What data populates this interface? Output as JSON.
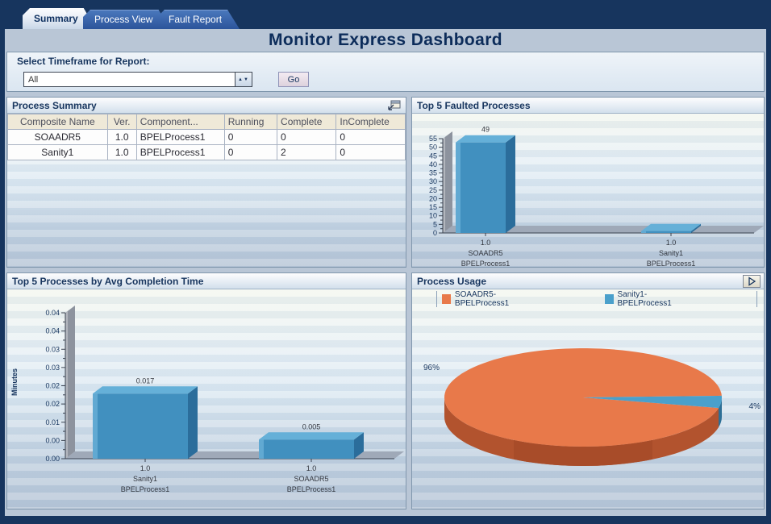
{
  "tabs": [
    {
      "label": "Summary",
      "active": true
    },
    {
      "label": "Process View",
      "active": false
    },
    {
      "label": "Fault Report",
      "active": false
    }
  ],
  "title": "Monitor Express Dashboard",
  "timeframe": {
    "heading": "Select Timeframe for Report:",
    "selected_option": "All",
    "go_label": "Go"
  },
  "process_summary": {
    "title": "Process Summary",
    "columns": [
      "Composite Name",
      "Ver.",
      "Component...",
      "Running",
      "Complete",
      "InComplete"
    ],
    "rows": [
      [
        "SOAADR5",
        "1.0",
        "BPELProcess1",
        "0",
        "0",
        "0"
      ],
      [
        "Sanity1",
        "1.0",
        "BPELProcess1",
        "0",
        "2",
        "0"
      ]
    ]
  },
  "chart_data": [
    {
      "type": "bar",
      "title": "Top 5 Faulted Processes",
      "ylim": [
        0,
        55
      ],
      "y_tick_step": 5,
      "y_tick_labels_top_to_bottom": [
        "55",
        "50",
        "45",
        "40",
        "35",
        "30",
        "25",
        "20",
        "15",
        "10",
        "5",
        "0"
      ],
      "categories": [
        [
          "1.0",
          "SOAADR5",
          "BPELProcess1"
        ],
        [
          "1.0",
          "Sanity1",
          "BPELProcess1"
        ]
      ],
      "values": [
        49,
        1
      ],
      "data_labels": [
        "49",
        ""
      ],
      "bar_front_color": "#4190bf",
      "bar_top_color": "#65b0d8",
      "bar_side_color": "#2b6d9b"
    },
    {
      "type": "bar",
      "title": "Top 5 Processes by Avg Completion Time",
      "ylabel": "Minutes",
      "ylim": [
        0,
        0.04
      ],
      "y_tick_labels_top_to_bottom": [
        "0.04",
        "0.04",
        "0.03",
        "0.03",
        "0.02",
        "0.02",
        "0.01",
        "0.00",
        "0.00"
      ],
      "categories": [
        [
          "1.0",
          "Sanity1",
          "BPELProcess1"
        ],
        [
          "1.0",
          "SOAADR5",
          "BPELProcess1"
        ]
      ],
      "values": [
        0.017,
        0.005
      ],
      "data_labels": [
        "0.017",
        "0.005"
      ],
      "bar_front_color": "#4190bf",
      "bar_top_color": "#65b0d8",
      "bar_side_color": "#2b6d9b"
    },
    {
      "type": "pie",
      "title": "Process Usage",
      "legend": [
        {
          "label": "SOAADR5-BPELProcess1",
          "color": "#e8794a"
        },
        {
          "label": "Sanity1-BPELProcess1",
          "color": "#4aa0cb"
        }
      ],
      "slices": [
        {
          "name": "SOAADR5-BPELProcess1",
          "pct": 96,
          "label": "96%",
          "color": "#e8794a",
          "side_color": "#b2532e"
        },
        {
          "name": "Sanity1-BPELProcess1",
          "pct": 4,
          "label": "4%",
          "color": "#4aa0cb",
          "side_color": "#2d6f96"
        }
      ]
    }
  ],
  "colors": {
    "frame_navy": "#17355e",
    "content_bg": "#b9c6d6",
    "panel_border": "#8097ad",
    "axis_text": "#17355e"
  }
}
